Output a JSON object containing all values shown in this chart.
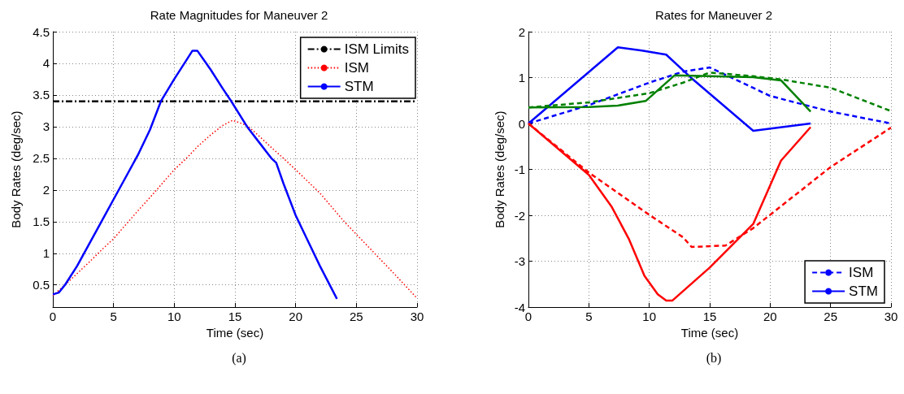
{
  "chart_data": [
    {
      "type": "line",
      "title": "Rate Magnitudes for Maneuver 2",
      "xlabel": "Time (sec)",
      "ylabel": "Body Rates (deg/sec)",
      "annotations": [
        "(a)"
      ],
      "xlim": [
        0,
        30
      ],
      "xticks": [
        0,
        5,
        10,
        15,
        20,
        25,
        30
      ],
      "ylim": [
        0.15,
        4.5
      ],
      "yticks": [
        0.5,
        1,
        1.5,
        2,
        2.5,
        3,
        3.5,
        4,
        4.5
      ],
      "grid": true,
      "legend": "top right",
      "marker": "none",
      "series": [
        {
          "name": "ISM Limits",
          "color": "#000000",
          "line_style": "dashdot",
          "x": [
            0,
            30
          ],
          "values": [
            3.4,
            3.4
          ]
        },
        {
          "name": "ISM",
          "color": "#ff0000",
          "line_style": "dotted",
          "x": [
            0,
            1,
            2,
            3,
            4,
            5,
            6,
            7,
            8,
            9,
            10,
            11,
            12,
            13,
            14,
            14.8,
            16,
            17,
            18,
            19,
            20,
            22,
            24,
            26,
            28,
            30
          ],
          "values": [
            0.33,
            0.5,
            0.68,
            0.86,
            1.05,
            1.23,
            1.45,
            1.67,
            1.88,
            2.1,
            2.32,
            2.5,
            2.7,
            2.87,
            3.02,
            3.1,
            3.02,
            2.85,
            2.67,
            2.5,
            2.32,
            1.95,
            1.5,
            1.1,
            0.7,
            0.29
          ]
        },
        {
          "name": "STM",
          "color": "#0000ff",
          "line_style": "solid",
          "x": [
            0,
            0.5,
            1,
            2,
            3,
            4,
            5,
            6,
            7,
            8,
            8.9,
            10,
            11,
            11.5,
            11.9,
            13,
            14,
            14.7,
            16,
            17,
            18,
            18.4,
            19,
            20,
            21,
            22,
            23.4
          ],
          "values": [
            0.35,
            0.38,
            0.5,
            0.8,
            1.15,
            1.5,
            1.85,
            2.2,
            2.55,
            2.95,
            3.4,
            3.75,
            4.05,
            4.2,
            4.2,
            3.9,
            3.6,
            3.4,
            3.0,
            2.75,
            2.5,
            2.43,
            2.1,
            1.6,
            1.2,
            0.8,
            0.28
          ]
        }
      ]
    },
    {
      "type": "line",
      "title": "Rates for Maneuver 2",
      "xlabel": "Time (sec)",
      "ylabel": "Body Rates (deg/sec)",
      "annotations": [
        "(b)"
      ],
      "xlim": [
        0,
        30
      ],
      "xticks": [
        0,
        5,
        10,
        15,
        20,
        25,
        30
      ],
      "ylim": [
        -4,
        2
      ],
      "yticks": [
        -4,
        -3,
        -2,
        -1,
        0,
        1,
        2
      ],
      "grid": true,
      "legend": "bottom right",
      "marker": "none",
      "series": [
        {
          "name": "ISM",
          "color": "#0000ff",
          "line_style": "dashed",
          "x": [
            0,
            5,
            10,
            12.8,
            15,
            17.2,
            20,
            25,
            30
          ],
          "values": [
            0,
            0.4,
            0.89,
            1.13,
            1.22,
            0.95,
            0.6,
            0.26,
            0
          ]
        },
        {
          "name": "STM",
          "color": "#0000ff",
          "line_style": "solid",
          "x": [
            0,
            7.4,
            9.4,
            11.4,
            13.4,
            18.6,
            23.35
          ],
          "values": [
            0,
            1.66,
            1.59,
            1.5,
            1.01,
            -0.16,
            0
          ]
        },
        {
          "color": "#008000",
          "line_style": "dashed",
          "x": [
            0,
            5,
            10,
            12.8,
            15,
            18.6,
            20.9,
            25,
            30
          ],
          "values": [
            0.35,
            0.46,
            0.66,
            0.89,
            1.11,
            1.03,
            0.96,
            0.78,
            0.27
          ]
        },
        {
          "color": "#008000",
          "line_style": "solid",
          "x": [
            0,
            5,
            7.4,
            9.7,
            12.1,
            15,
            18.6,
            20.9,
            23.35
          ],
          "values": [
            0.35,
            0.36,
            0.39,
            0.49,
            1.05,
            1.03,
            1.01,
            0.94,
            0.26
          ]
        },
        {
          "color": "#ff0000",
          "line_style": "dashed",
          "x": [
            0,
            5,
            10,
            12.8,
            13.5,
            16.3,
            18.6,
            25,
            30
          ],
          "values": [
            0,
            -1.07,
            -1.99,
            -2.48,
            -2.69,
            -2.66,
            -2.28,
            -0.95,
            -0.09
          ]
        },
        {
          "color": "#ff0000",
          "line_style": "solid",
          "x": [
            0,
            5,
            6.9,
            8.3,
            9.6,
            10.7,
            11.4,
            11.9,
            15,
            18.6,
            20.9,
            23.35
          ],
          "values": [
            0,
            -1.12,
            -1.82,
            -2.51,
            -3.32,
            -3.72,
            -3.86,
            -3.86,
            -3.14,
            -2.19,
            -0.81,
            -0.08
          ]
        }
      ]
    }
  ]
}
